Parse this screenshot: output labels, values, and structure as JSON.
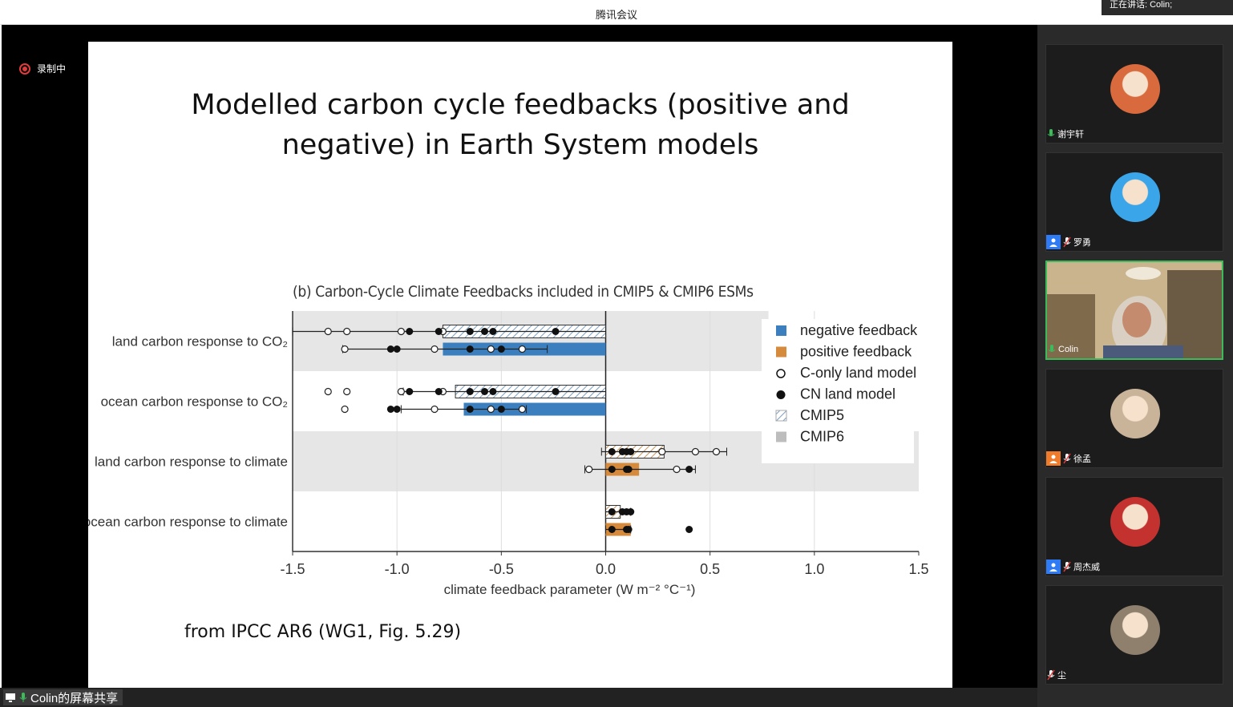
{
  "window": {
    "title": "腾讯会议",
    "speaking": "正在讲话: Colin;"
  },
  "recording": {
    "label": "录制中"
  },
  "slide": {
    "title_line1": "Modelled carbon cycle feedbacks (positive and",
    "title_line2": "negative) in Earth System models",
    "source": "from IPCC AR6 (WG1, Fig. 5.29)"
  },
  "share": {
    "label": "Colin的屏幕共享"
  },
  "participants": [
    {
      "name": "谢宇轩",
      "avatar": "avatar-boy-photo",
      "avatar_color": "#d86a3e",
      "muted": false,
      "badge": false
    },
    {
      "name": "罗勇",
      "avatar": "avatar-cartoon-man",
      "avatar_color": "#3aa5e8",
      "muted": true,
      "badge": true,
      "badge_color": "#2f7bf6"
    },
    {
      "name": "Colin",
      "avatar": "live-video",
      "muted": false,
      "speaking": true,
      "badge": false
    },
    {
      "name": "徐孟",
      "avatar": "avatar-woman-photo",
      "avatar_color": "#c9b49a",
      "muted": true,
      "badge": true,
      "badge_color": "#f07b2a"
    },
    {
      "name": "周杰威",
      "avatar": "avatar-abstract-art",
      "avatar_color": "#c3322e",
      "muted": true,
      "badge": true,
      "badge_color": "#2f7bf6"
    },
    {
      "name": "尘",
      "avatar": "avatar-girl-photo",
      "avatar_color": "#8f7f6d",
      "muted": true,
      "badge": false
    }
  ],
  "chart_data": {
    "type": "bar",
    "title": "(b) Carbon-Cycle Climate Feedbacks included in CMIP5 & CMIP6 ESMs",
    "xlabel": "climate feedback parameter (W m⁻² °C⁻¹)",
    "xlim": [
      -1.5,
      1.5
    ],
    "xticks": [
      "-1.5",
      "-1.0",
      "-0.5",
      "0.0",
      "0.5",
      "1.0",
      "1.5"
    ],
    "categories": [
      "land carbon response to CO₂",
      "ocean carbon response to CO₂",
      "land carbon response to climate",
      "ocean carbon response to climate"
    ],
    "legend_position": "top-right",
    "legend": [
      "negative feedback",
      "positive feedback",
      "C-only land model",
      "CN land model",
      "CMIP5",
      "CMIP6"
    ],
    "colors": {
      "negative": "#3b7fbf",
      "positive": "#d68a3c",
      "band": "#e6e6e6"
    },
    "series": [
      {
        "name": "CMIP5",
        "values": [
          -0.78,
          -0.72,
          0.28,
          0.07
        ],
        "whisker": [
          [
            -1.5,
            0.0
          ],
          [
            -0.97,
            0.0
          ],
          [
            -0.02,
            0.58
          ],
          [
            0.0,
            0.12
          ]
        ],
        "c_only": [
          -1.33,
          -1.24,
          -0.98,
          -0.78
        ],
        "cn": [
          -0.24,
          -0.54,
          -0.58,
          -0.65,
          -0.8,
          -0.94
        ],
        "c_only_extra": [
          0.27,
          0.43,
          0.53
        ],
        "cn_extra": [
          0.03,
          0.08,
          0.1,
          0.12
        ]
      },
      {
        "name": "CMIP6",
        "values": [
          -0.78,
          -0.68,
          0.16,
          0.12
        ],
        "whisker": [
          [
            -1.26,
            -0.28
          ],
          [
            -0.98,
            -0.38
          ],
          [
            -0.1,
            0.43
          ],
          [
            0.0,
            0.12
          ]
        ],
        "c_only": [
          -1.25,
          -0.82,
          -0.55,
          -0.4
        ],
        "cn": [
          -0.65,
          -0.5,
          -1.03,
          -1.0
        ],
        "c_only_extra": [
          -0.08,
          0.34
        ],
        "cn_extra": [
          0.03,
          0.1,
          0.4,
          0.11
        ]
      }
    ]
  }
}
